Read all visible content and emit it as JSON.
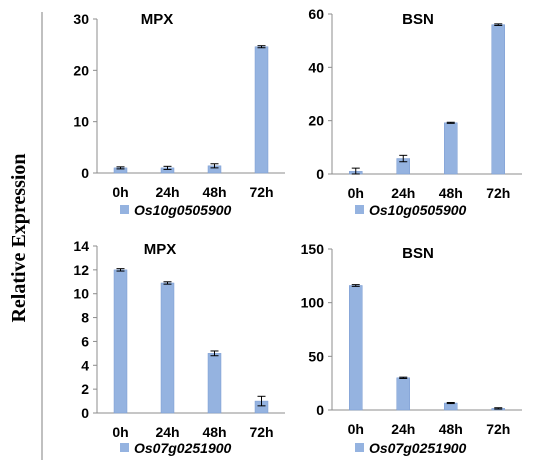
{
  "ylabel": "Relative Expression",
  "colors": {
    "bar": "#95b3e0",
    "bar_edge": "#7a9bd2",
    "axis": "#8c8c8c",
    "text": "#000000",
    "divider": "#808080"
  },
  "chart_data": [
    {
      "type": "bar",
      "title": "MPX",
      "categories": [
        "0h",
        "24h",
        "48h",
        "72h"
      ],
      "series": [
        {
          "name": "Os10g0505900",
          "values": [
            1.0,
            1.0,
            1.4,
            24.6
          ],
          "errors": [
            0.2,
            0.3,
            0.4,
            0.2
          ]
        }
      ],
      "ylim": [
        0,
        30
      ],
      "yticks": [
        0,
        10,
        20,
        30
      ],
      "legend": "bottom"
    },
    {
      "type": "bar",
      "title": "BSN",
      "categories": [
        "0h",
        "24h",
        "48h",
        "72h"
      ],
      "series": [
        {
          "name": "Os10g0505900",
          "values": [
            1.0,
            5.8,
            19.2,
            56.0
          ],
          "errors": [
            1.2,
            1.2,
            0.2,
            0.3
          ]
        }
      ],
      "ylim": [
        0,
        60
      ],
      "yticks": [
        0,
        20,
        40,
        60
      ],
      "legend": "bottom"
    },
    {
      "type": "bar",
      "title": "MPX",
      "categories": [
        "0h",
        "24h",
        "48h",
        "72h"
      ],
      "series": [
        {
          "name": "Os07g0251900",
          "values": [
            12.0,
            10.9,
            5.0,
            1.0
          ],
          "errors": [
            0.1,
            0.1,
            0.2,
            0.4
          ]
        }
      ],
      "ylim": [
        0,
        14
      ],
      "yticks": [
        0,
        2,
        4,
        6,
        8,
        10,
        12,
        14
      ],
      "legend": "bottom"
    },
    {
      "type": "bar",
      "title": "BSN",
      "categories": [
        "0h",
        "24h",
        "48h",
        "72h"
      ],
      "series": [
        {
          "name": "Os07g0251900",
          "values": [
            116.0,
            30.0,
            6.5,
            1.5
          ],
          "errors": [
            0.8,
            0.6,
            0.5,
            0.6
          ]
        }
      ],
      "ylim": [
        0,
        150
      ],
      "yticks": [
        0,
        50,
        100,
        150
      ],
      "legend": "bottom"
    }
  ]
}
